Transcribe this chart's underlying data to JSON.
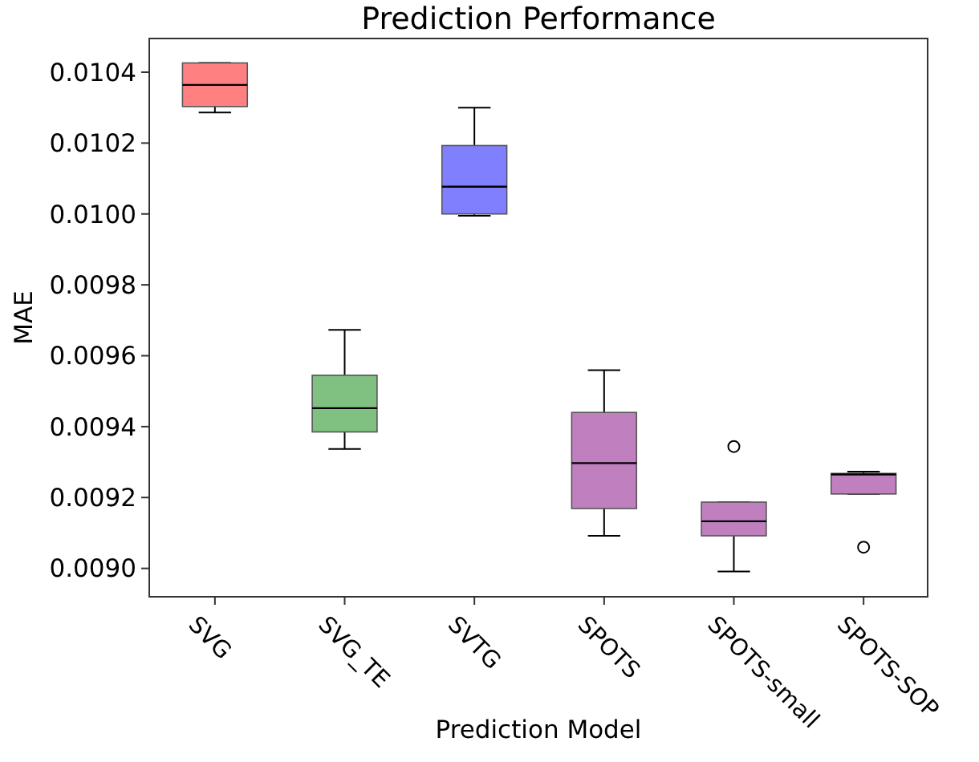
{
  "chart_data": {
    "type": "box",
    "title": "Prediction Performance",
    "xlabel": "Prediction Model",
    "ylabel": "MAE",
    "categories": [
      "SVG",
      "SVG_TE",
      "SVTG",
      "SPOTS",
      "SPOTS-small",
      "SPOTS-SOP"
    ],
    "colors": [
      "#ff8080",
      "#80c080",
      "#8080ff",
      "#c080c0",
      "#c080c0",
      "#c080c0"
    ],
    "boxes": [
      {
        "low": 0.010286,
        "q1": 0.010303,
        "median": 0.010364,
        "q3": 0.010426,
        "high": 0.010426
      },
      {
        "low": 0.009337,
        "q1": 0.009385,
        "median": 0.009452,
        "q3": 0.009545,
        "high": 0.009673
      },
      {
        "low": 0.009995,
        "q1": 0.01,
        "median": 0.010077,
        "q3": 0.010193,
        "high": 0.0103
      },
      {
        "low": 0.009092,
        "q1": 0.009169,
        "median": 0.009297,
        "q3": 0.00944,
        "high": 0.009559
      },
      {
        "low": 0.008991,
        "q1": 0.009092,
        "median": 0.009133,
        "q3": 0.009187,
        "high": 0.009187,
        "outliers": [
          0.009344
        ]
      },
      {
        "low": 0.00921,
        "q1": 0.00921,
        "median": 0.009265,
        "q3": 0.009268,
        "high": 0.009273,
        "outliers": [
          0.00906
        ]
      }
    ],
    "ylim": [
      0.00892,
      0.010495
    ],
    "yticks": [
      {
        "value": 0.009,
        "label": "0.0090"
      },
      0.0092,
      0.0094,
      0.0096,
      0.0098,
      {
        "value": 0.01,
        "label": "0.0100"
      },
      0.0102,
      0.0104
    ]
  }
}
